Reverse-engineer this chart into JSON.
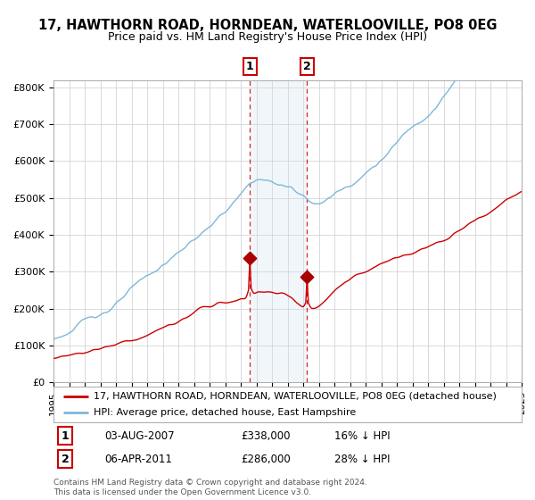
{
  "title": "17, HAWTHORN ROAD, HORNDEAN, WATERLOOVILLE, PO8 0EG",
  "subtitle": "Price paid vs. HM Land Registry's House Price Index (HPI)",
  "ylim": [
    0,
    820000
  ],
  "yticks": [
    0,
    100000,
    200000,
    300000,
    400000,
    500000,
    600000,
    700000,
    800000
  ],
  "ytick_labels": [
    "£0",
    "£100K",
    "£200K",
    "£300K",
    "£400K",
    "£500K",
    "£600K",
    "£700K",
    "£800K"
  ],
  "xmin": 1995,
  "xmax": 2025,
  "sale1_year": 2007.58,
  "sale1_price": 338000,
  "sale2_year": 2011.25,
  "sale2_price": 286000,
  "sale1_text": "03-AUG-2007",
  "sale1_price_text": "£338,000",
  "sale1_hpi_text": "16% ↓ HPI",
  "sale2_text": "06-APR-2011",
  "sale2_price_text": "£286,000",
  "sale2_hpi_text": "28% ↓ HPI",
  "hpi_color": "#7db8d8",
  "price_color": "#cc0000",
  "marker_color": "#aa0000",
  "shade_color": "#c8dff0",
  "bg_color": "#ffffff",
  "grid_color": "#cccccc",
  "legend_line1": "17, HAWTHORN ROAD, HORNDEAN, WATERLOOVILLE, PO8 0EG (detached house)",
  "legend_line2": "HPI: Average price, detached house, East Hampshire",
  "footer": "Contains HM Land Registry data © Crown copyright and database right 2024.\nThis data is licensed under the Open Government Licence v3.0.",
  "title_fontsize": 10.5,
  "subtitle_fontsize": 9,
  "axis_fontsize": 8,
  "legend_fontsize": 8,
  "table_fontsize": 8.5,
  "footer_fontsize": 6.5
}
